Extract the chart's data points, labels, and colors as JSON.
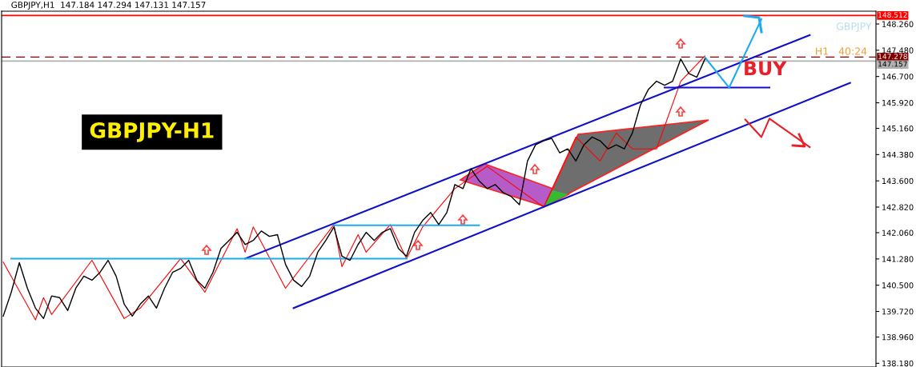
{
  "chart_data": {
    "type": "line",
    "title": "GBPJPY,H1  147.184 147.294 147.131 147.157",
    "categories": [
      null,
      null,
      null,
      null,
      null,
      null,
      null,
      null,
      null,
      null,
      null,
      null,
      null,
      null,
      null,
      null,
      null,
      null,
      null,
      null,
      null,
      null,
      null,
      null,
      null,
      null,
      null,
      null,
      null,
      null,
      null,
      null,
      null,
      null,
      null,
      null,
      null,
      null,
      null,
      null,
      null,
      null,
      null,
      null,
      null,
      null,
      null,
      null,
      null,
      null,
      null,
      null,
      null,
      null,
      null,
      null,
      null,
      null,
      null,
      null,
      null,
      null,
      null,
      null,
      null,
      null,
      null,
      null,
      null,
      null,
      null,
      null,
      null,
      null,
      null,
      null,
      null,
      null,
      null,
      null,
      null,
      null,
      null,
      null,
      null,
      null,
      null,
      null,
      null,
      null,
      null,
      null,
      null,
      null,
      null,
      null,
      null,
      null,
      null,
      null,
      null,
      null,
      null,
      null,
      null,
      null
    ],
    "ylim": [
      138.07,
      148.64
    ],
    "tick_labels": "y",
    "grid": false,
    "legend": false,
    "yticks": [
      {
        "value": 148.26,
        "label": "148.260"
      },
      {
        "value": 147.48,
        "label": "147.480"
      },
      {
        "value": 146.7,
        "label": "146.700"
      },
      {
        "value": 145.92,
        "label": "145.920"
      },
      {
        "value": 145.16,
        "label": "145.160"
      },
      {
        "value": 144.38,
        "label": "144.380"
      },
      {
        "value": 143.6,
        "label": "143.600"
      },
      {
        "value": 142.82,
        "label": "142.820"
      },
      {
        "value": 142.06,
        "label": "142.060"
      },
      {
        "value": 141.28,
        "label": "141.280"
      },
      {
        "value": 140.5,
        "label": "140.500"
      },
      {
        "value": 139.72,
        "label": "139.720"
      },
      {
        "value": 138.96,
        "label": "138.960"
      },
      {
        "value": 138.18,
        "label": "138.180"
      }
    ],
    "series": [
      {
        "color": "#000000",
        "values": [
          139.58,
          140.29,
          141.17,
          140.41,
          139.82,
          139.51,
          140.18,
          140.13,
          139.75,
          140.41,
          140.77,
          140.65,
          140.88,
          141.24,
          140.77,
          139.94,
          139.58,
          139.94,
          140.18,
          139.82,
          140.41,
          140.88,
          141.0,
          141.24,
          140.65,
          140.41,
          140.88,
          141.59,
          141.83,
          142.07,
          141.71,
          141.83,
          142.11,
          141.95,
          142.0,
          141.12,
          140.65,
          140.46,
          140.77,
          141.48,
          141.83,
          142.23,
          141.36,
          141.24,
          141.71,
          142.07,
          141.83,
          142.07,
          142.18,
          141.59,
          141.36,
          142.07,
          142.42,
          142.66,
          142.3,
          142.66,
          143.49,
          143.37,
          143.96,
          143.6,
          143.37,
          143.49,
          143.25,
          143.13,
          142.89,
          144.19,
          144.67,
          144.79,
          144.86,
          144.43,
          144.55,
          144.19,
          144.67,
          144.9,
          144.79,
          144.55,
          144.67,
          144.55,
          145.02,
          145.85,
          146.32,
          146.56,
          146.44,
          146.56,
          147.22,
          146.79,
          146.68,
          147.22,
          null,
          null,
          null,
          null,
          null,
          null,
          null,
          null,
          null,
          null,
          null,
          null,
          null,
          null,
          null,
          null,
          null,
          null
        ]
      },
      {
        "color": "#ff0000",
        "values": [
          141.19,
          null,
          null,
          null,
          139.47,
          140.13,
          139.63,
          null,
          null,
          null,
          null,
          141.24,
          null,
          null,
          null,
          139.51,
          null,
          139.82,
          null,
          null,
          null,
          null,
          141.29,
          null,
          null,
          140.29,
          null,
          null,
          null,
          142.18,
          141.48,
          142.23,
          null,
          null,
          null,
          140.41,
          null,
          null,
          null,
          null,
          null,
          142.3,
          141.05,
          null,
          142.0,
          141.48,
          null,
          null,
          142.3,
          null,
          141.29,
          null,
          142.23,
          null,
          null,
          null,
          143.37,
          null,
          null,
          null,
          144.03,
          null,
          null,
          null,
          null,
          null,
          null,
          142.82,
          null,
          null,
          null,
          144.9,
          null,
          null,
          144.19,
          null,
          145.02,
          null,
          144.55,
          null,
          null,
          144.55,
          null,
          null,
          146.56,
          null,
          null,
          147.31,
          null,
          null,
          null,
          null,
          null,
          null,
          null,
          null,
          null,
          null,
          null,
          null,
          null,
          null,
          null,
          null,
          null,
          null
        ]
      },
      {
        "color": "#1010c8",
        "values": [
          null,
          null,
          null,
          null,
          null,
          null,
          null,
          null,
          null,
          null,
          null,
          null,
          null,
          null,
          null,
          null,
          null,
          null,
          null,
          null,
          null,
          null,
          null,
          null,
          null,
          null,
          null,
          null,
          null,
          null,
          141.29,
          null,
          null,
          null,
          null,
          null,
          null,
          null,
          null,
          null,
          null,
          null,
          null,
          null,
          null,
          null,
          null,
          null,
          null,
          null,
          null,
          null,
          null,
          null,
          null,
          null,
          null,
          null,
          null,
          null,
          null,
          null,
          null,
          null,
          null,
          null,
          null,
          null,
          null,
          null,
          null,
          null,
          null,
          null,
          null,
          null,
          null,
          null,
          null,
          null,
          null,
          null,
          null,
          null,
          null,
          null,
          null,
          null,
          null,
          null,
          null,
          null,
          null,
          null,
          null,
          null,
          null,
          null,
          null,
          null,
          147.93,
          null,
          null,
          null,
          null,
          null
        ]
      },
      {
        "color": "#1010c8",
        "values": [
          null,
          null,
          null,
          null,
          null,
          null,
          null,
          null,
          null,
          null,
          null,
          null,
          null,
          null,
          null,
          null,
          null,
          null,
          null,
          null,
          null,
          null,
          null,
          null,
          null,
          null,
          null,
          null,
          null,
          null,
          null,
          null,
          null,
          null,
          null,
          null,
          139.82,
          null,
          null,
          null,
          null,
          null,
          null,
          null,
          null,
          null,
          null,
          null,
          null,
          null,
          null,
          null,
          null,
          null,
          null,
          null,
          null,
          null,
          null,
          null,
          null,
          null,
          null,
          null,
          null,
          null,
          null,
          null,
          null,
          null,
          null,
          null,
          null,
          null,
          null,
          null,
          null,
          null,
          null,
          null,
          null,
          null,
          null,
          null,
          null,
          null,
          null,
          null,
          null,
          null,
          null,
          null,
          null,
          null,
          null,
          null,
          null,
          null,
          null,
          null,
          null,
          null,
          null,
          null,
          null,
          146.51
        ]
      },
      {
        "color": "#1eaaf0",
        "values": [
          null,
          141.29,
          null,
          null,
          null,
          null,
          null,
          null,
          null,
          null,
          null,
          null,
          null,
          null,
          null,
          null,
          null,
          null,
          null,
          null,
          null,
          null,
          null,
          null,
          null,
          null,
          null,
          null,
          null,
          null,
          null,
          null,
          null,
          null,
          null,
          null,
          null,
          null,
          null,
          null,
          null,
          null,
          null,
          null,
          null,
          null,
          null,
          null,
          null,
          null,
          141.29,
          null,
          null,
          null,
          null,
          null,
          null,
          null,
          null,
          null,
          null,
          null,
          null,
          null,
          null,
          null,
          null,
          null,
          null,
          null,
          null,
          null,
          null,
          null,
          null,
          null,
          null,
          null,
          null,
          null,
          null,
          null,
          null,
          null,
          null,
          null,
          null,
          null,
          null,
          null,
          null,
          null,
          null,
          null,
          null,
          null,
          null,
          null,
          null,
          null,
          null,
          null,
          null,
          null,
          null,
          null
        ]
      },
      {
        "color": "#1eaaf0",
        "values": [
          null,
          null,
          null,
          null,
          null,
          null,
          null,
          null,
          null,
          null,
          null,
          null,
          null,
          null,
          null,
          null,
          null,
          null,
          null,
          null,
          null,
          null,
          null,
          null,
          null,
          null,
          null,
          null,
          null,
          null,
          null,
          null,
          null,
          null,
          null,
          null,
          null,
          null,
          null,
          null,
          null,
          142.28,
          null,
          null,
          null,
          null,
          null,
          null,
          null,
          null,
          null,
          null,
          null,
          null,
          null,
          null,
          null,
          null,
          null,
          142.28,
          null,
          null,
          null,
          null,
          null,
          null,
          null,
          null,
          null,
          null,
          null,
          null,
          null,
          null,
          null,
          null,
          null,
          null,
          null,
          null,
          null,
          null,
          null,
          null,
          null,
          null,
          null,
          null,
          null,
          null,
          null,
          null,
          null,
          null,
          null,
          null,
          null,
          null,
          null,
          null,
          null,
          null,
          null,
          null,
          null,
          null
        ]
      },
      {
        "color": "#1010c8",
        "values": [
          null,
          null,
          null,
          null,
          null,
          null,
          null,
          null,
          null,
          null,
          null,
          null,
          null,
          null,
          null,
          null,
          null,
          null,
          null,
          null,
          null,
          null,
          null,
          null,
          null,
          null,
          null,
          null,
          null,
          null,
          null,
          null,
          null,
          null,
          null,
          null,
          null,
          null,
          null,
          null,
          null,
          null,
          null,
          null,
          null,
          null,
          null,
          null,
          null,
          null,
          null,
          null,
          null,
          null,
          null,
          null,
          null,
          null,
          null,
          null,
          null,
          null,
          null,
          null,
          null,
          null,
          null,
          null,
          null,
          null,
          null,
          null,
          null,
          null,
          null,
          null,
          null,
          null,
          null,
          null,
          null,
          null,
          146.37,
          null,
          null,
          null,
          null,
          null,
          null,
          null,
          null,
          null,
          null,
          null,
          null,
          146.37,
          null,
          null,
          null,
          null,
          null,
          null,
          null,
          null,
          null,
          null
        ]
      },
      {
        "color": "#1eaaf0",
        "values": [
          null,
          null,
          null,
          null,
          null,
          null,
          null,
          null,
          null,
          null,
          null,
          null,
          null,
          null,
          null,
          null,
          null,
          null,
          null,
          null,
          null,
          null,
          null,
          null,
          null,
          null,
          null,
          null,
          null,
          null,
          null,
          null,
          null,
          null,
          null,
          null,
          null,
          null,
          null,
          null,
          null,
          null,
          null,
          null,
          null,
          null,
          null,
          null,
          null,
          null,
          null,
          null,
          null,
          null,
          null,
          null,
          null,
          null,
          null,
          null,
          null,
          null,
          null,
          null,
          null,
          null,
          null,
          null,
          null,
          null,
          null,
          null,
          null,
          null,
          null,
          null,
          null,
          null,
          null,
          null,
          null,
          null,
          null,
          null,
          null,
          null,
          null,
          147.27,
          null,
          null,
          146.37,
          null,
          null,
          null,
          148.4,
          null,
          null,
          null,
          null,
          null,
          null,
          null,
          null,
          null,
          null,
          null
        ]
      },
      {
        "color": "#e8202a",
        "values": [
          null,
          null,
          null,
          null,
          null,
          null,
          null,
          null,
          null,
          null,
          null,
          null,
          null,
          null,
          null,
          null,
          null,
          null,
          null,
          null,
          null,
          null,
          null,
          null,
          null,
          null,
          null,
          null,
          null,
          null,
          null,
          null,
          null,
          null,
          null,
          null,
          null,
          null,
          null,
          null,
          null,
          null,
          null,
          null,
          null,
          null,
          null,
          null,
          null,
          null,
          null,
          null,
          null,
          null,
          null,
          null,
          null,
          null,
          null,
          null,
          null,
          null,
          null,
          null,
          null,
          null,
          null,
          null,
          null,
          null,
          null,
          null,
          null,
          null,
          null,
          null,
          null,
          null,
          null,
          null,
          null,
          null,
          null,
          null,
          null,
          null,
          null,
          null,
          null,
          null,
          null,
          null,
          145.42,
          null,
          144.9,
          145.45,
          null,
          null,
          null,
          null,
          144.6,
          null,
          null,
          null,
          null,
          null
        ]
      }
    ],
    "ref_lines": [
      {
        "axis": "y",
        "value": 148.512,
        "label": "148.512",
        "color": "#ff0000",
        "line_style": "solid"
      },
      {
        "axis": "y",
        "value": 147.278,
        "label": "147.278",
        "color": "#800000",
        "line_style": "dashed"
      },
      {
        "axis": "y",
        "value": 147.157,
        "label": "147.157",
        "color": "#b0b0b0",
        "line_style": "solid"
      }
    ],
    "annotations": [
      "GBPJPY",
      "H1   40:24",
      "BUY",
      "GBPJPY-H1"
    ]
  }
}
